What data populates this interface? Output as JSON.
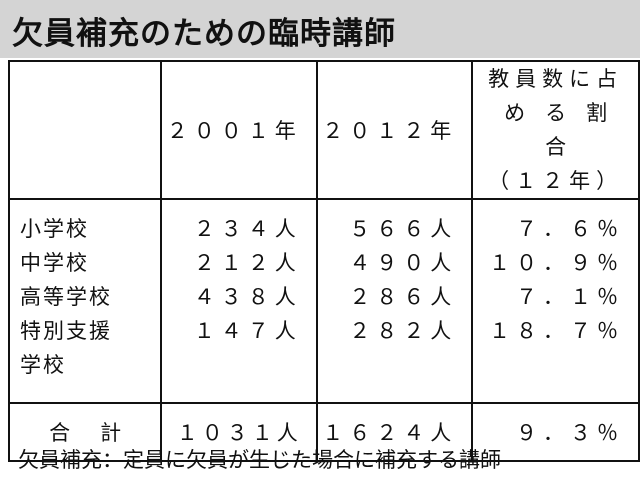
{
  "title": "欠員補充のための臨時講師",
  "table": {
    "header": [
      "２００１年",
      "２０１２年",
      [
        "教員数に占",
        "める割合",
        "（１２年）"
      ]
    ],
    "rows": [
      [
        "小学校",
        "２３４人",
        "５６６人",
        "７．６％"
      ],
      [
        "中学校",
        "２１２人",
        "４９０人",
        "１０．９％"
      ],
      [
        "高等学校",
        "４３８人",
        "２８６人",
        "７．１％"
      ],
      [
        "特別支援学校",
        "１４７人",
        "２８２人",
        "１８．７％"
      ]
    ],
    "total": [
      "合計",
      "１０３１人",
      "１６２４人",
      "９．３％"
    ]
  },
  "footer": "欠員補充：定員に欠員が生じた場合に補充する講師"
}
